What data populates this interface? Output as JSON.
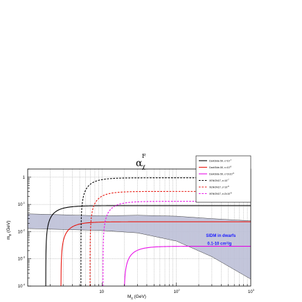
{
  "chart_data": {
    "type": "line",
    "title": "α",
    "title_sub": "χ",
    "title_sup": "F",
    "xlabel": "M",
    "xlabel_sub": "χ",
    "xlabel_unit": " (GeV)",
    "ylabel": "m",
    "ylabel_sub": "φ",
    "ylabel_unit": " (GeV)",
    "xscale": "log",
    "yscale": "log",
    "xlim": [
      1,
      1000
    ],
    "ylim": [
      0.0001,
      2
    ],
    "grid": true,
    "legend_position": "top-right",
    "x_ticks": [
      {
        "value": 10,
        "base": "10",
        "exp": ""
      },
      {
        "value": 100,
        "base": "10",
        "exp": "2"
      },
      {
        "value": 1000,
        "base": "10",
        "exp": "3"
      }
    ],
    "y_ticks": [
      {
        "value": 0.0001,
        "base": "10",
        "exp": "-4"
      },
      {
        "value": 0.001,
        "base": "10",
        "exp": "-3"
      },
      {
        "value": 0.01,
        "base": "10",
        "exp": "-2"
      },
      {
        "value": 0.1,
        "base": "10",
        "exp": "-1"
      },
      {
        "value": 1,
        "base": "1",
        "exp": ""
      }
    ],
    "band": {
      "color": "#b9bdd6",
      "upper": [
        [
          1,
          0.045
        ],
        [
          10,
          0.038
        ],
        [
          30,
          0.04
        ],
        [
          100,
          0.037
        ],
        [
          300,
          0.03
        ],
        [
          1000,
          0.025
        ]
      ],
      "lower": [
        [
          1,
          0.013
        ],
        [
          10,
          0.011
        ],
        [
          30,
          0.009
        ],
        [
          100,
          0.0045
        ],
        [
          300,
          0.0012
        ],
        [
          1000,
          0.00018
        ]
      ]
    },
    "annotation": {
      "line1": "SIDM in dwarfs",
      "line2": "0.1-10 cm",
      "line2_sup": "2",
      "line2_tail": "/g",
      "x": 250,
      "y1": 0.0065,
      "y2": 0.0033
    },
    "series": [
      {
        "name": "DarkSide-50, ε=10",
        "exp": "-7",
        "color": "#000000",
        "dash": "solid",
        "x0": 1.75,
        "asymptote": 0.09
      },
      {
        "name": "DarkSide-50, ε=10",
        "exp": "-8",
        "color": "#e8140c",
        "dash": "solid",
        "x0": 2.8,
        "asymptote": 0.023
      },
      {
        "name": "DarkSide-50, ε=2x10",
        "exp": "-9",
        "color": "#e80ee8",
        "dash": "solid",
        "x0": 19.8,
        "asymptote": 0.0029
      },
      {
        "name": "XENON1T, ε=10",
        "exp": "-7",
        "color": "#000000",
        "dash": "dashed",
        "x0": 5.2,
        "asymptote": 0.95
      },
      {
        "name": "XENON1T, ε=10",
        "exp": "-8",
        "color": "#e8140c",
        "dash": "dashed",
        "x0": 6.9,
        "asymptote": 0.3
      },
      {
        "name": "XENON1T, ε=2x10",
        "exp": "-8",
        "color": "#e80ee8",
        "dash": "dashed",
        "x0": 10.3,
        "asymptote": 0.13
      }
    ]
  }
}
